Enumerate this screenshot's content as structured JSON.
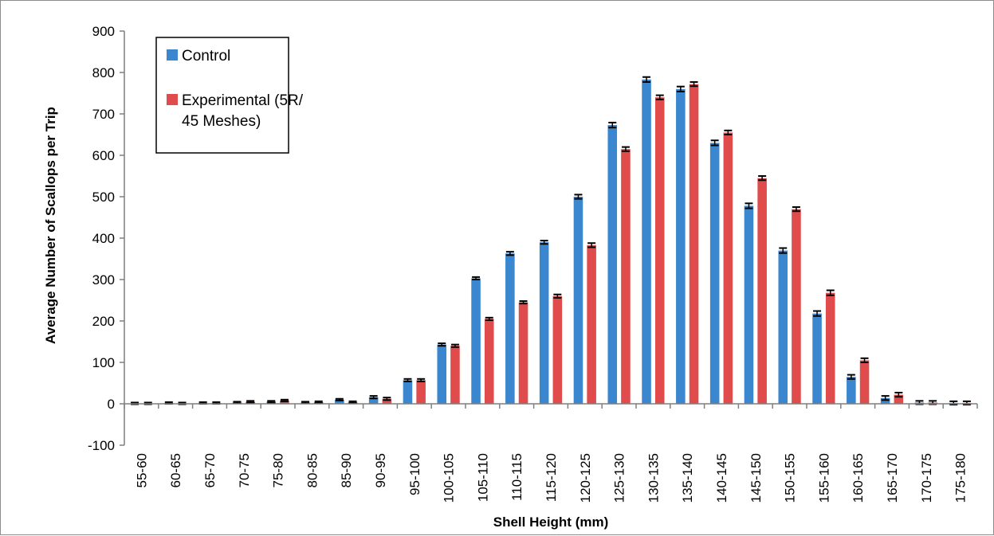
{
  "chart_data": {
    "type": "bar",
    "title": "",
    "xlabel": "Shell Height (mm)",
    "ylabel": "Average Number of Scallops per Trip",
    "ylim": [
      -100,
      900
    ],
    "yticks": [
      -100,
      0,
      100,
      200,
      300,
      400,
      500,
      600,
      700,
      800,
      900
    ],
    "grid": false,
    "legend": {
      "placement": "top-left"
    },
    "categories": [
      "55-60",
      "60-65",
      "65-70",
      "70-75",
      "75-80",
      "80-85",
      "85-90",
      "90-95",
      "95-100",
      "100-105",
      "105-110",
      "110-115",
      "115-120",
      "120-125",
      "125-130",
      "130-135",
      "135-140",
      "140-145",
      "145-150",
      "150-155",
      "155-160",
      "160-165",
      "165-170",
      "170-175",
      "175-180"
    ],
    "series": [
      {
        "name": "Control",
        "color": "#3a86cf",
        "values": [
          1,
          2,
          2,
          3,
          5,
          3,
          10,
          16,
          57,
          143,
          303,
          363,
          390,
          500,
          673,
          783,
          760,
          630,
          478,
          370,
          218,
          65,
          14,
          3,
          2
        ],
        "errors": [
          2,
          2,
          2,
          2,
          2,
          2,
          2,
          3,
          3,
          3,
          3,
          4,
          4,
          5,
          6,
          6,
          6,
          6,
          6,
          6,
          6,
          5,
          5,
          4,
          4
        ]
      },
      {
        "name": "Experimental (5R/ 45 Meshes)",
        "color": "#e04b4b",
        "values": [
          1,
          1,
          2,
          5,
          8,
          4,
          4,
          12,
          57,
          140,
          205,
          245,
          260,
          383,
          615,
          740,
          772,
          655,
          545,
          470,
          268,
          105,
          22,
          3,
          2
        ],
        "errors": [
          2,
          2,
          2,
          2,
          2,
          2,
          2,
          3,
          3,
          3,
          3,
          3,
          4,
          5,
          5,
          5,
          5,
          5,
          5,
          5,
          6,
          5,
          5,
          4,
          4
        ]
      }
    ]
  }
}
